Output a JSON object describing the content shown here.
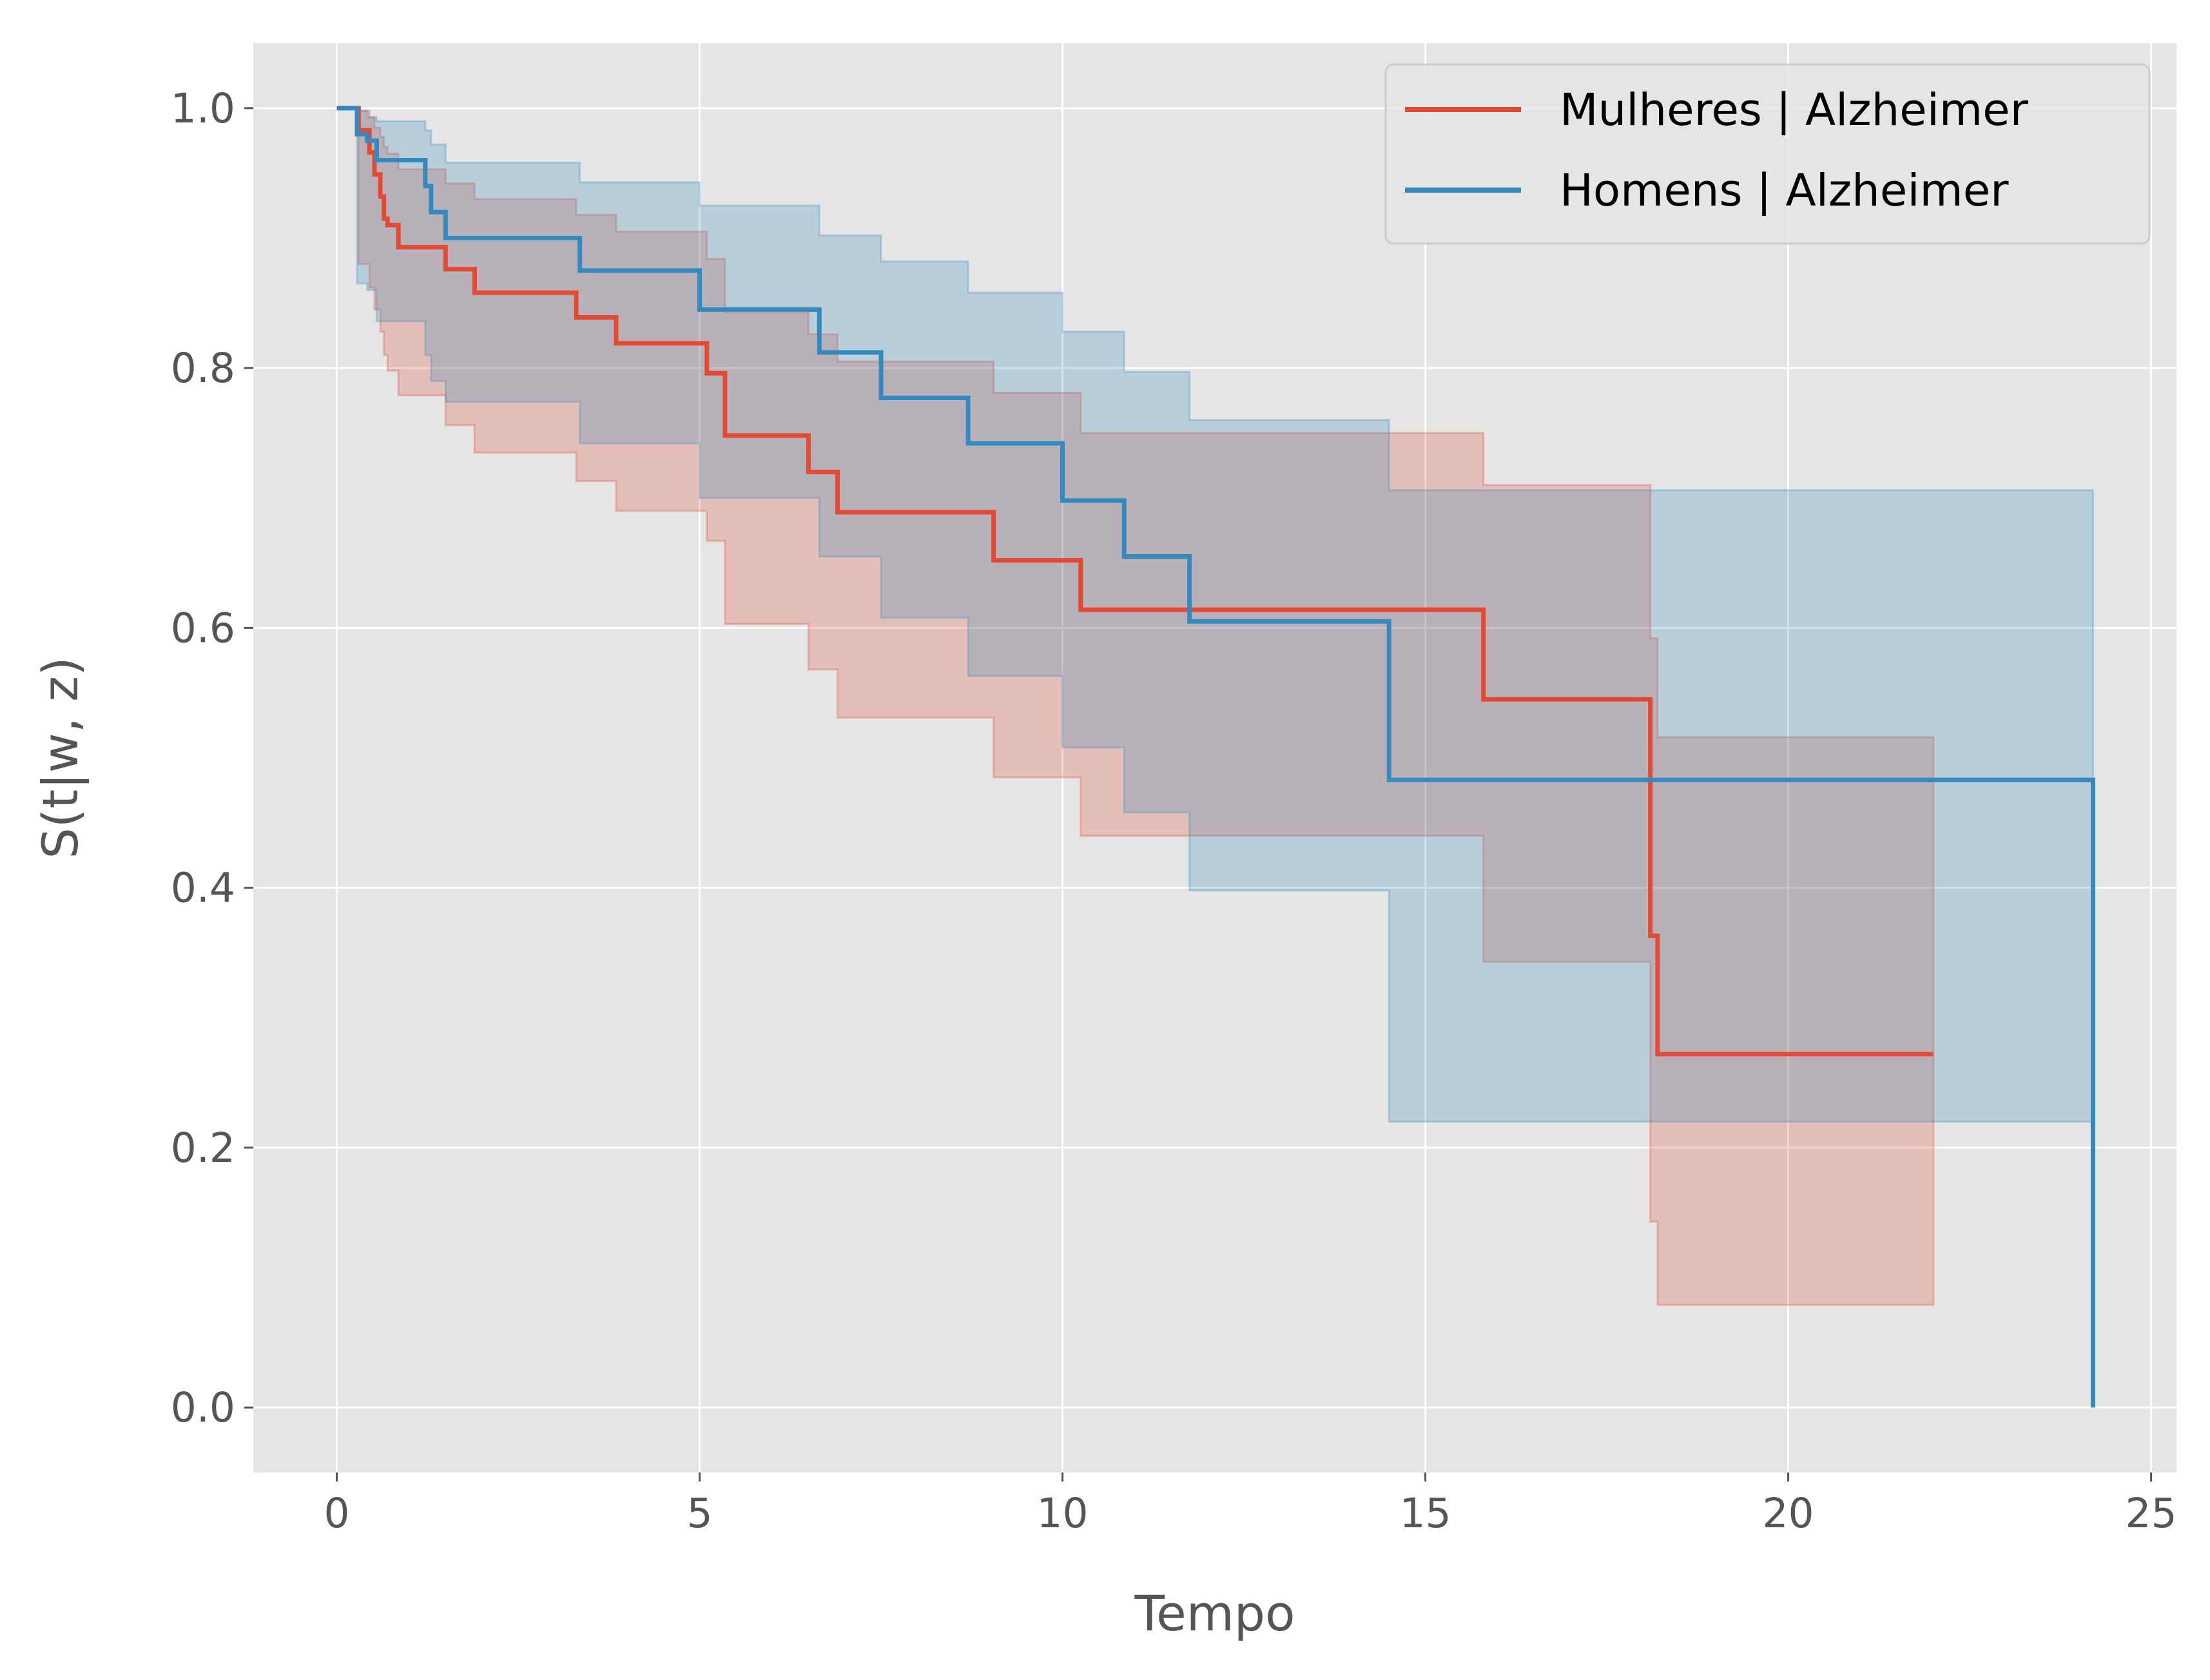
{
  "chart_data": {
    "type": "line",
    "subtype": "step-survival-with-confidence-bands",
    "style": "ggplot",
    "xlabel": "Tempo",
    "ylabel": "S(t|w, z)",
    "xlim": [
      -1.15,
      25.35
    ],
    "ylim": [
      -0.05,
      1.05
    ],
    "xticks": [
      0,
      5,
      10,
      15,
      20,
      25
    ],
    "yticks": [
      0.0,
      0.2,
      0.4,
      0.6,
      0.8,
      1.0
    ],
    "xtick_labels": [
      "0",
      "5",
      "10",
      "15",
      "20",
      "25"
    ],
    "ytick_labels": [
      "0.0",
      "0.2",
      "0.4",
      "0.6",
      "0.8",
      "1.0"
    ],
    "grid": true,
    "legend_position": "top-right",
    "series": [
      {
        "name": "Mulheres | Alzheimer",
        "color": "#E24A33",
        "t": [
          0,
          0.3,
          0.45,
          0.52,
          0.6,
          0.65,
          0.7,
          0.85,
          1.5,
          1.9,
          3.3,
          3.85,
          5.1,
          5.35,
          6.5,
          6.9,
          9.05,
          10.25,
          15.8,
          18.1,
          18.2,
          22.0
        ],
        "s": [
          1.0,
          0.983,
          0.966,
          0.949,
          0.932,
          0.915,
          0.91,
          0.893,
          0.876,
          0.858,
          0.839,
          0.819,
          0.796,
          0.748,
          0.72,
          0.689,
          0.652,
          0.614,
          0.545,
          0.363,
          0.272,
          0.272
        ],
        "lower": [
          1.0,
          0.88,
          0.862,
          0.845,
          0.828,
          0.81,
          0.798,
          0.779,
          0.756,
          0.735,
          0.713,
          0.69,
          0.667,
          0.603,
          0.568,
          0.531,
          0.485,
          0.44,
          0.343,
          0.143,
          0.079,
          0.079
        ],
        "upper": [
          1.0,
          0.998,
          0.993,
          0.985,
          0.978,
          0.97,
          0.965,
          0.953,
          0.942,
          0.93,
          0.918,
          0.905,
          0.884,
          0.843,
          0.826,
          0.805,
          0.781,
          0.75,
          0.71,
          0.592,
          0.516,
          0.516
        ]
      },
      {
        "name": "Homens | Alzheimer",
        "color": "#348ABD",
        "t": [
          0,
          0.28,
          0.42,
          0.55,
          1.22,
          1.3,
          1.5,
          3.35,
          5.0,
          6.65,
          7.5,
          8.7,
          10.0,
          10.85,
          11.75,
          14.5,
          24.2,
          24.2
        ],
        "s": [
          1.0,
          0.98,
          0.975,
          0.96,
          0.94,
          0.92,
          0.9,
          0.875,
          0.845,
          0.812,
          0.777,
          0.742,
          0.698,
          0.655,
          0.605,
          0.483,
          0.483,
          0.0
        ],
        "lower": [
          1.0,
          0.865,
          0.86,
          0.836,
          0.81,
          0.79,
          0.774,
          0.742,
          0.7,
          0.655,
          0.608,
          0.563,
          0.508,
          0.458,
          0.398,
          0.22,
          0.22,
          0.22
        ],
        "upper": [
          1.0,
          0.998,
          0.993,
          0.99,
          0.983,
          0.972,
          0.958,
          0.943,
          0.925,
          0.902,
          0.882,
          0.858,
          0.828,
          0.797,
          0.76,
          0.706,
          0.706,
          0.706
        ]
      }
    ]
  }
}
